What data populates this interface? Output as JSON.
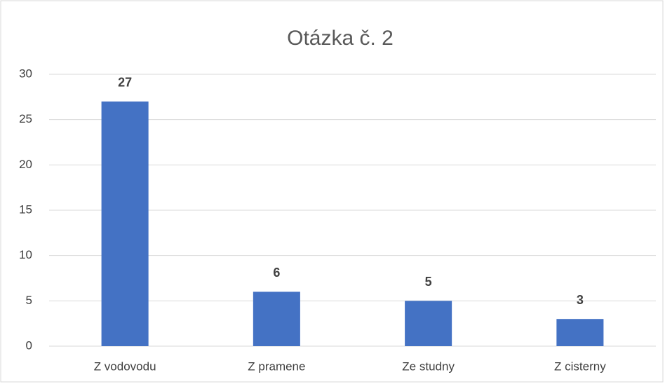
{
  "chart_data": {
    "type": "bar",
    "title": "Otázka č. 2",
    "categories": [
      "Z vodovodu",
      "Z pramene",
      "Ze studny",
      "Z cisterny"
    ],
    "values": [
      27,
      6,
      5,
      3
    ],
    "color": "#4472c4",
    "ylim": [
      0,
      30
    ],
    "yticks": [
      0,
      5,
      10,
      15,
      20,
      25,
      30
    ],
    "grid": true
  }
}
